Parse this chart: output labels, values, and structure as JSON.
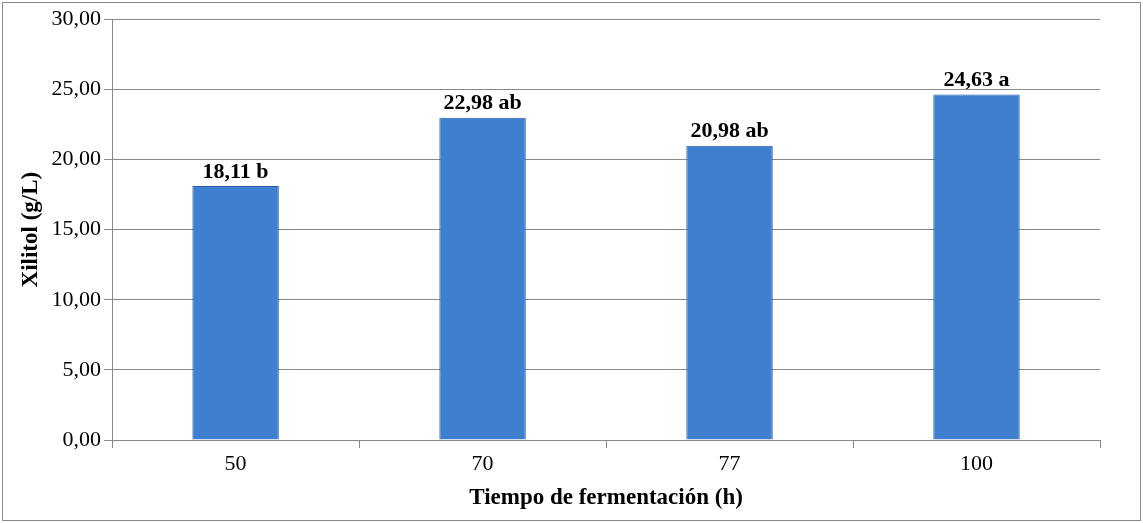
{
  "chart_data": {
    "type": "bar",
    "xlabel": "Tiempo de fermentación (h)",
    "ylabel": "Xilitol (g/L)",
    "categories": [
      "50",
      "70",
      "77",
      "100"
    ],
    "values": [
      18.11,
      22.98,
      20.98,
      24.63
    ],
    "value_labels": [
      "18,11 b",
      "22,98 ab",
      "20,98 ab",
      "24,63 a"
    ],
    "color": "#3f7fd0",
    "ylim": [
      0,
      30
    ],
    "yticks": [
      {
        "value": 0,
        "label": "0,00"
      },
      {
        "value": 5,
        "label": "5,00"
      },
      {
        "value": 10,
        "label": "10,00"
      },
      {
        "value": 15,
        "label": "15,00"
      },
      {
        "value": 20,
        "label": "20,00"
      },
      {
        "value": 25,
        "label": "25,00"
      },
      {
        "value": 30,
        "label": "30,00"
      }
    ],
    "grid": "y",
    "legend": false
  }
}
